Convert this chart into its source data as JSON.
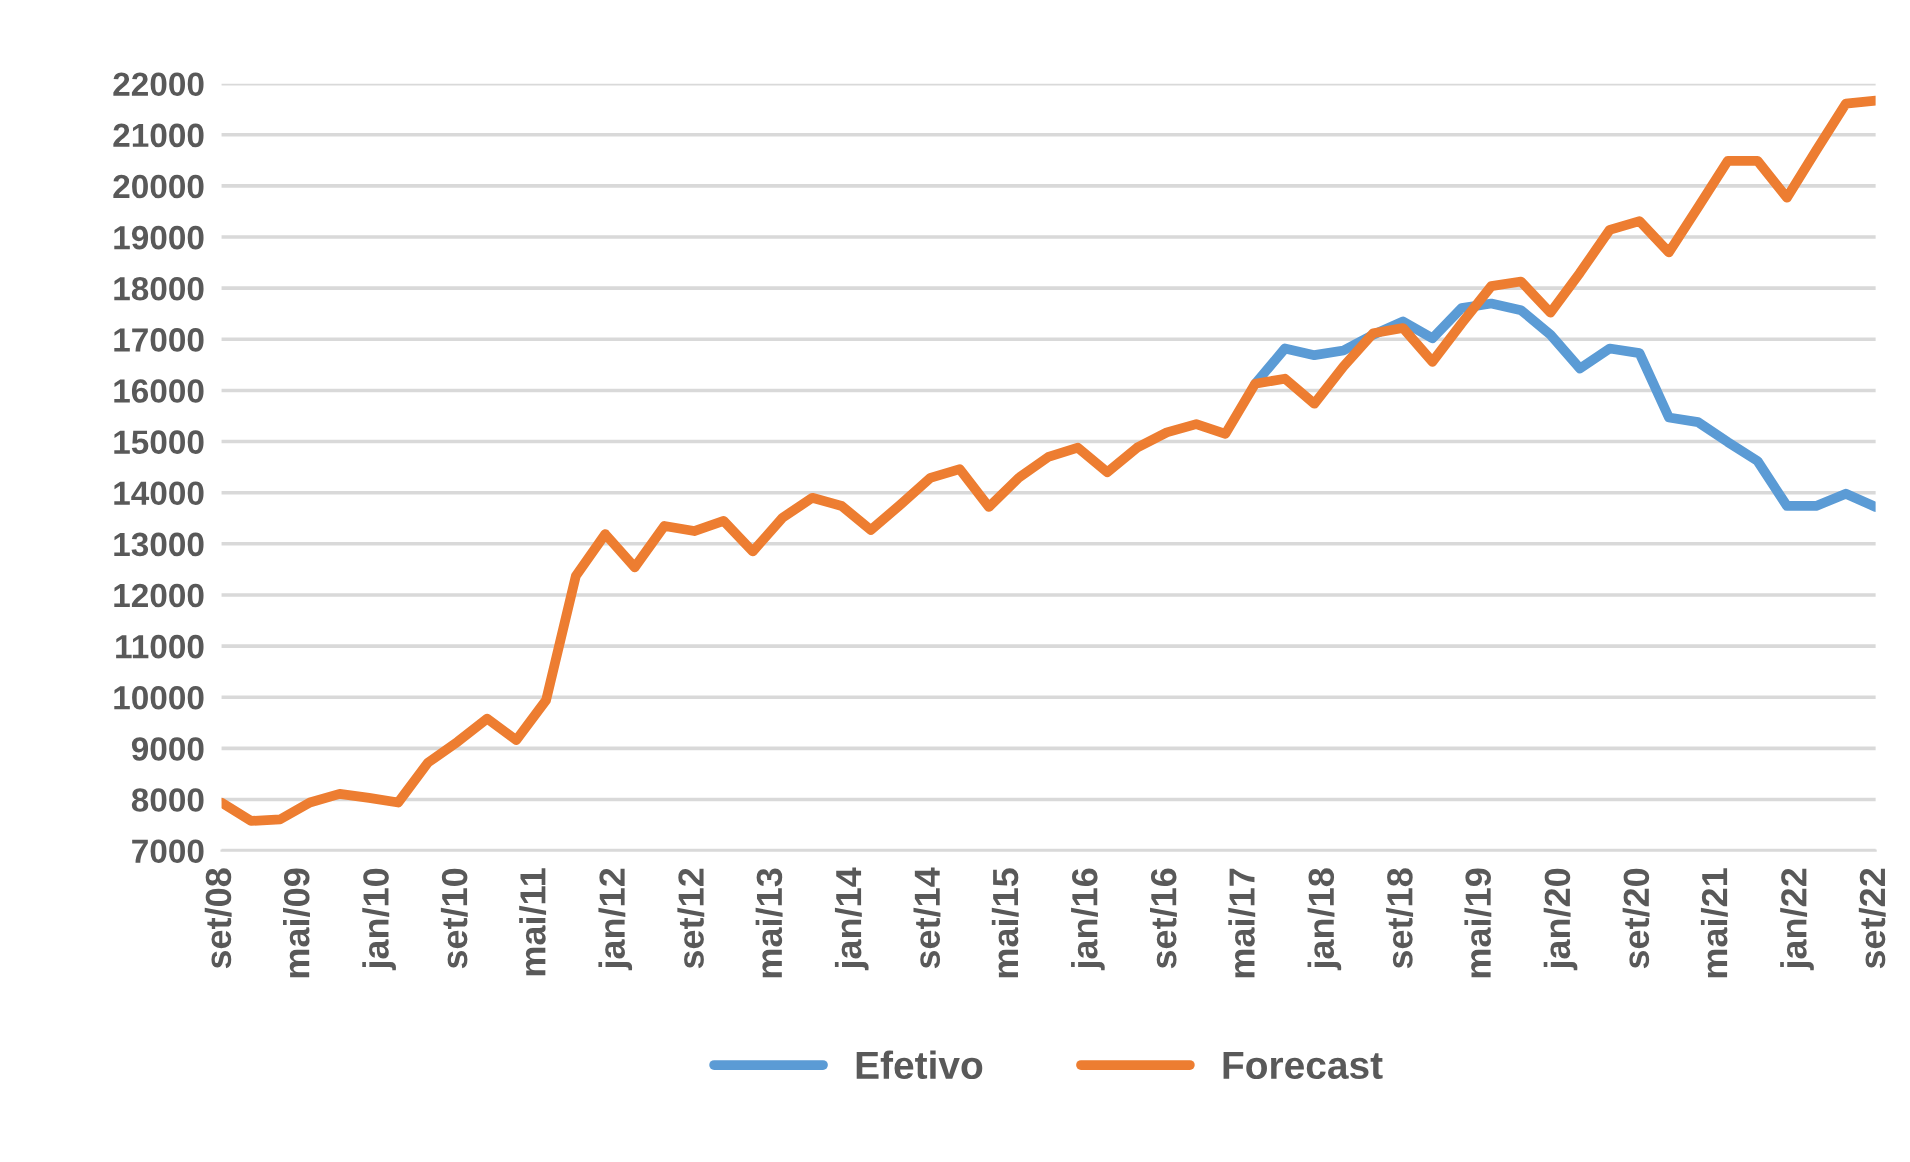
{
  "chart_data": {
    "type": "line",
    "x": [
      "2008-09",
      "2008-12",
      "2009-03",
      "2009-06",
      "2009-09",
      "2009-12",
      "2010-03",
      "2010-06",
      "2010-09",
      "2010-12",
      "2011-03",
      "2011-06",
      "2011-09",
      "2011-12",
      "2012-03",
      "2012-06",
      "2012-09",
      "2012-12",
      "2013-03",
      "2013-06",
      "2013-09",
      "2013-12",
      "2014-03",
      "2014-06",
      "2014-09",
      "2014-12",
      "2015-03",
      "2015-06",
      "2015-09",
      "2015-12",
      "2016-03",
      "2016-06",
      "2016-09",
      "2016-12",
      "2017-03",
      "2017-06",
      "2017-09",
      "2017-12",
      "2018-03",
      "2018-06",
      "2018-09",
      "2018-12",
      "2019-03",
      "2019-06",
      "2019-09",
      "2019-12",
      "2020-03",
      "2020-06",
      "2020-09",
      "2020-12",
      "2021-03",
      "2021-06",
      "2021-09",
      "2021-12",
      "2022-03",
      "2022-06",
      "2022-09"
    ],
    "series": [
      {
        "name": "Efetivo",
        "color": "#5b9bd5",
        "values": [
          null,
          null,
          null,
          null,
          null,
          null,
          null,
          null,
          null,
          null,
          null,
          null,
          null,
          null,
          null,
          null,
          null,
          null,
          null,
          null,
          null,
          null,
          null,
          null,
          null,
          null,
          null,
          null,
          null,
          null,
          null,
          null,
          null,
          null,
          null,
          16130,
          16820,
          16690,
          16780,
          17090,
          17350,
          17020,
          17610,
          17700,
          17570,
          17090,
          16430,
          16820,
          16730,
          15470,
          15380,
          14990,
          14620,
          13740,
          13740,
          13980,
          13720
        ]
      },
      {
        "name": "Forecast",
        "color": "#ed7d31",
        "values": [
          7940,
          7580,
          7610,
          7940,
          8110,
          8030,
          7940,
          8720,
          9130,
          9580,
          9160,
          9940,
          12370,
          13190,
          12540,
          13350,
          13250,
          13450,
          12850,
          13510,
          13900,
          13740,
          13270,
          13770,
          14290,
          14460,
          13720,
          14290,
          14700,
          14880,
          14400,
          14880,
          15180,
          15340,
          15150,
          16130,
          16230,
          15740,
          16470,
          17120,
          17220,
          16560,
          17310,
          18040,
          18130,
          17520,
          18300,
          19140,
          19310,
          18700,
          19580,
          20490,
          20490,
          19770,
          20690,
          21610,
          21670
        ]
      }
    ],
    "xlim": [
      "2008-09",
      "2022-09"
    ],
    "xticks": [
      {
        "value": "2008-09",
        "label": "set/08"
      },
      {
        "value": "2009-05",
        "label": "mai/09"
      },
      {
        "value": "2010-01",
        "label": "jan/10"
      },
      {
        "value": "2010-09",
        "label": "set/10"
      },
      {
        "value": "2011-05",
        "label": "mai/11"
      },
      {
        "value": "2012-01",
        "label": "jan/12"
      },
      {
        "value": "2012-09",
        "label": "set/12"
      },
      {
        "value": "2013-05",
        "label": "mai/13"
      },
      {
        "value": "2014-01",
        "label": "jan/14"
      },
      {
        "value": "2014-09",
        "label": "set/14"
      },
      {
        "value": "2015-05",
        "label": "mai/15"
      },
      {
        "value": "2016-01",
        "label": "jan/16"
      },
      {
        "value": "2016-09",
        "label": "set/16"
      },
      {
        "value": "2017-05",
        "label": "mai/17"
      },
      {
        "value": "2018-01",
        "label": "jan/18"
      },
      {
        "value": "2018-09",
        "label": "set/18"
      },
      {
        "value": "2019-05",
        "label": "mai/19"
      },
      {
        "value": "2020-01",
        "label": "jan/20"
      },
      {
        "value": "2020-09",
        "label": "set/20"
      },
      {
        "value": "2021-05",
        "label": "mai/21"
      },
      {
        "value": "2022-01",
        "label": "jan/22"
      },
      {
        "value": "2022-09",
        "label": "set/22"
      }
    ],
    "ylim": [
      7000,
      22000
    ],
    "yticks": [
      7000,
      8000,
      9000,
      10000,
      11000,
      12000,
      13000,
      14000,
      15000,
      16000,
      17000,
      18000,
      19000,
      20000,
      21000,
      22000
    ],
    "grid": "y",
    "legend": "bottom",
    "marker": "none",
    "line_style": "solid"
  }
}
